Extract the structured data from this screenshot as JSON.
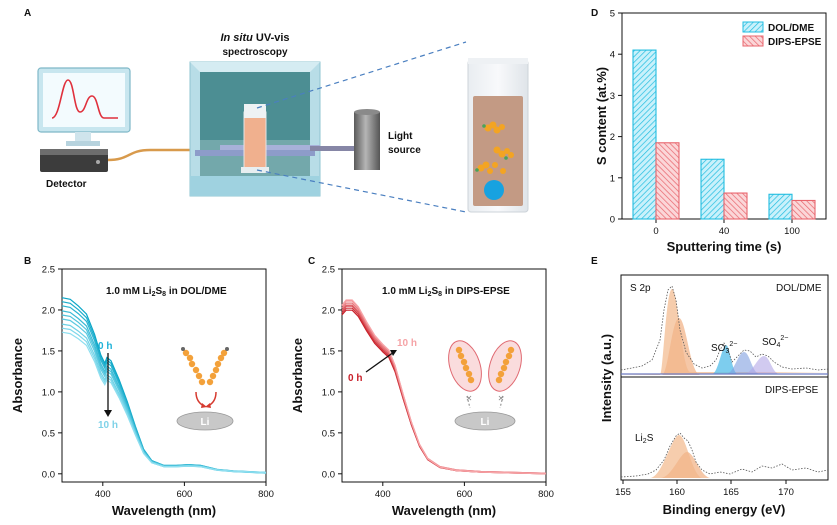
{
  "panels": {
    "a": {
      "label": "A",
      "title_italic": "In situ",
      "title_rest": " UV-vis",
      "title_line2": "spectroscopy",
      "detector_label": "Detector",
      "light_line1": "Light",
      "light_line2": "source"
    },
    "b": {
      "label": "B",
      "title_pre": "1.0 mM Li",
      "title_sub1": "2",
      "title_mid": "S",
      "title_sub2": "8",
      "title_post": " in DOL/DME",
      "time_start": "0 h",
      "time_end": "10 h",
      "electrode_label": "Li"
    },
    "c": {
      "label": "C",
      "title_pre": "1.0 mM Li",
      "title_sub1": "2",
      "title_mid": "S",
      "title_sub2": "8",
      "title_post": " in DIPS-EPSE",
      "time_start": "0 h",
      "time_end": "10 h",
      "electrode_label": "Li"
    },
    "d": {
      "label": "D"
    },
    "e": {
      "label": "E",
      "region": "S 2p",
      "top_solvent": "DOL/DME",
      "bottom_solvent": "DIPS-EPSE",
      "so3_base": "SO",
      "so3_sub": "3",
      "so3_sup": "2−",
      "so4_base": "SO",
      "so4_sub": "4",
      "so4_sup": "2−",
      "li2s_base": "Li",
      "li2s_sub": "2",
      "li2s_post": "S",
      "ylabel": "Intensity (a.u.)",
      "xlabel": "Binding energy (eV)",
      "xticks": [
        "155",
        "160",
        "165",
        "170"
      ]
    }
  },
  "chart_data": [
    {
      "id": "d",
      "type": "bar",
      "categories": [
        "0",
        "40",
        "100"
      ],
      "series": [
        {
          "name": "DOL/DME",
          "values": [
            4.1,
            1.45,
            0.6
          ],
          "color": "#22bde0"
        },
        {
          "name": "DIPS-EPSE",
          "values": [
            1.85,
            0.63,
            0.45
          ],
          "color": "#e8656d"
        }
      ],
      "xlabel": "Sputtering time (s)",
      "ylabel": "S content (at.%)",
      "ylim": [
        0,
        5
      ],
      "yticks": [
        "0",
        "1",
        "2",
        "3",
        "4",
        "5"
      ],
      "legend": "top-right"
    },
    {
      "id": "b",
      "type": "line",
      "xlabel": "Wavelength (nm)",
      "ylabel": "Absorbance",
      "xlim": [
        300,
        800
      ],
      "ylim": [
        -0.1,
        2.5
      ],
      "xticks": [
        "400",
        "600",
        "800"
      ],
      "yticks": [
        "0.0",
        "0.5",
        "1.0",
        "1.5",
        "2.0",
        "2.5"
      ],
      "series_scales": [
        1.0,
        0.975,
        0.95,
        0.925,
        0.9,
        0.875,
        0.85,
        0.825,
        0.8
      ],
      "base_curve": [
        [
          300,
          2.15
        ],
        [
          320,
          2.13
        ],
        [
          340,
          2.05
        ],
        [
          360,
          1.95
        ],
        [
          380,
          1.7
        ],
        [
          395,
          1.45
        ],
        [
          405,
          1.35
        ],
        [
          410,
          1.42
        ],
        [
          420,
          1.38
        ],
        [
          440,
          1.15
        ],
        [
          460,
          0.88
        ],
        [
          480,
          0.58
        ],
        [
          500,
          0.3
        ],
        [
          520,
          0.16
        ],
        [
          550,
          0.1
        ],
        [
          580,
          0.1
        ],
        [
          610,
          0.11
        ],
        [
          640,
          0.1
        ],
        [
          680,
          0.05
        ],
        [
          720,
          0.03
        ],
        [
          760,
          0.02
        ],
        [
          800,
          0.01
        ]
      ],
      "color_start": "#0aa6c7",
      "color_end": "#8fdff0"
    },
    {
      "id": "c",
      "type": "line",
      "xlabel": "Wavelength (nm)",
      "ylabel": "Absorbance",
      "xlim": [
        300,
        800
      ],
      "ylim": [
        -0.1,
        2.5
      ],
      "xticks": [
        "400",
        "600",
        "800"
      ],
      "yticks": [
        "0.0",
        "0.5",
        "1.0",
        "1.5",
        "2.0",
        "2.5"
      ],
      "series_scales": [
        0.96,
        0.97,
        0.98,
        0.99,
        1.0,
        1.01,
        1.02
      ],
      "base_curve": [
        [
          300,
          2.02
        ],
        [
          310,
          2.08
        ],
        [
          325,
          2.08
        ],
        [
          340,
          2.0
        ],
        [
          360,
          1.82
        ],
        [
          380,
          1.66
        ],
        [
          400,
          1.55
        ],
        [
          415,
          1.48
        ],
        [
          430,
          1.3
        ],
        [
          450,
          0.95
        ],
        [
          470,
          0.62
        ],
        [
          490,
          0.35
        ],
        [
          510,
          0.18
        ],
        [
          540,
          0.08
        ],
        [
          580,
          0.04
        ],
        [
          640,
          0.02
        ],
        [
          720,
          0.01
        ],
        [
          800,
          0.0
        ]
      ],
      "color_start": "#c81e28",
      "color_end": "#f7a5a8"
    }
  ]
}
